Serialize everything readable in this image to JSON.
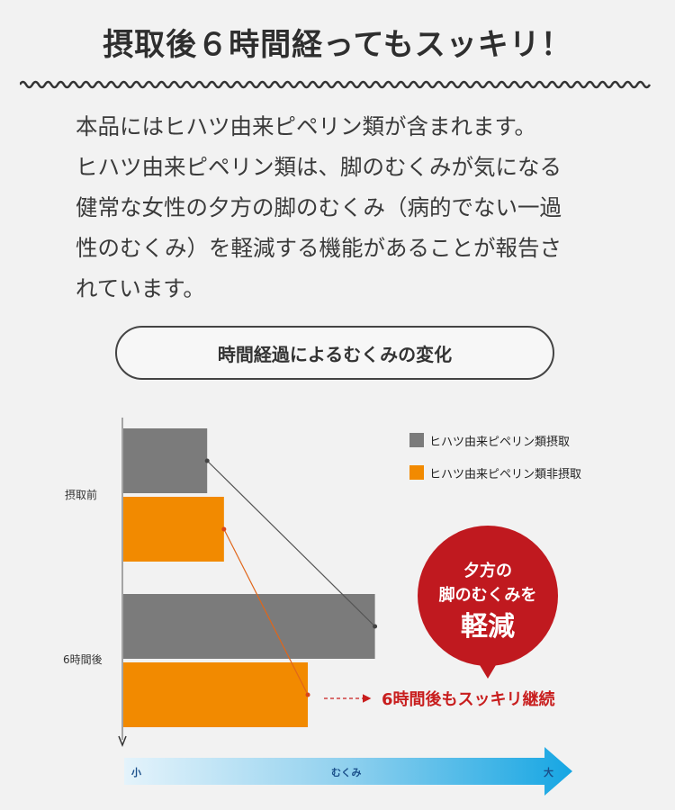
{
  "heading": "摂取後６時間経ってもスッキリ！",
  "body_lines": [
    "本品にはヒハツ由来ピペリン類が含まれます。",
    "ヒハツ由来ピペリン類は、脚のむくみが気になる",
    "健常な女性の夕方の脚のむくみ（病的でない一過",
    "性のむくみ）を軽減する機能があることが報告さ",
    "れています。"
  ],
  "chart_title": "時間経過によるむくみの変化",
  "chart_data": {
    "type": "bar",
    "orientation": "horizontal",
    "categories": [
      "摂取前",
      "6時間後"
    ],
    "series": [
      {
        "name": "ヒハツ由来ピペリン類摂取",
        "color": "#7b7b7b",
        "values": [
          0.2,
          0.6
        ]
      },
      {
        "name": "ヒハツ由来ピペリン類非摂取",
        "color": "#f28a00",
        "values": [
          0.24,
          0.44
        ]
      }
    ],
    "xlabel": "むくみ",
    "x_axis_labels": {
      "min": "小",
      "max": "大"
    },
    "legend_position": "top-right",
    "grid": false
  },
  "callout": {
    "line1": "夕方の",
    "line2": "脚のむくみを",
    "line3": "軽減",
    "color": "#c0191f"
  },
  "annotation": "6時間後もスッキリ継続"
}
